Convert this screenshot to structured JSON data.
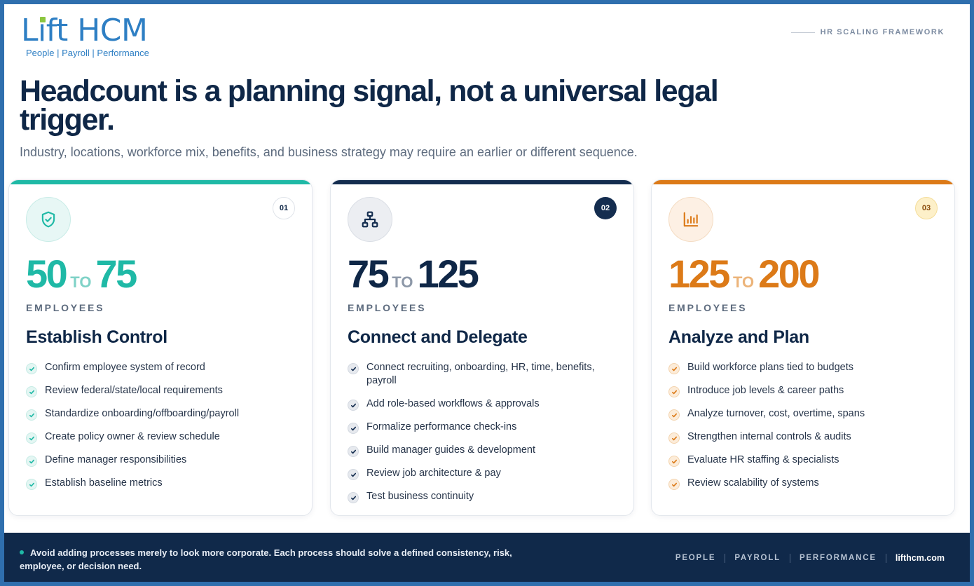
{
  "brand": {
    "logo_prefix": "L",
    "logo_i": "i",
    "logo_suffix": "ft HCM",
    "tagline": "People | Payroll | Performance",
    "accent_blue": "#2e7fc4",
    "accent_green": "#8cc63f"
  },
  "header": {
    "framework_label": "HR SCALING FRAMEWORK",
    "headline": "Headcount is a planning signal, not a universal legal trigger.",
    "subhead": "Industry, locations, workforce mix, benefits, and business strategy may require an earlier or different sequence."
  },
  "cards": [
    {
      "number": "01",
      "icon": "shield-check-icon",
      "accent": "#1fb9a6",
      "range_from": "50",
      "range_to_word": "TO",
      "range_to": "75",
      "unit": "EMPLOYEES",
      "title": "Establish Control",
      "items": [
        "Confirm employee system of record",
        "Review federal/state/local requirements",
        "Standardize onboarding/offboarding/payroll",
        "Create policy owner & review schedule",
        "Define manager responsibilities",
        "Establish baseline metrics"
      ]
    },
    {
      "number": "02",
      "icon": "org-chart-icon",
      "accent": "#142d4f",
      "range_from": "75",
      "range_to_word": "TO",
      "range_to": "125",
      "unit": "EMPLOYEES",
      "title": "Connect and Delegate",
      "items": [
        "Connect recruiting, onboarding, HR, time, benefits, payroll",
        "Add role-based workflows & approvals",
        "Formalize performance check-ins",
        "Build manager guides & development",
        "Review job architecture & pay",
        "Test business continuity"
      ]
    },
    {
      "number": "03",
      "icon": "bar-chart-icon",
      "accent": "#dc7a18",
      "range_from": "125",
      "range_to_word": "TO",
      "range_to": "200",
      "unit": "EMPLOYEES",
      "title": "Analyze and Plan",
      "items": [
        "Build workforce plans tied to budgets",
        "Introduce job levels & career paths",
        "Analyze turnover, cost, overtime, spans",
        "Strengthen internal controls & audits",
        "Evaluate HR staffing & specialists",
        "Review scalability of systems"
      ]
    }
  ],
  "footer": {
    "note": "Avoid adding processes merely to look more corporate. Each process should solve a defined consistency, risk, employee, or decision need.",
    "links": [
      "PEOPLE",
      "PAYROLL",
      "PERFORMANCE"
    ],
    "site": "lifthcm.com"
  }
}
